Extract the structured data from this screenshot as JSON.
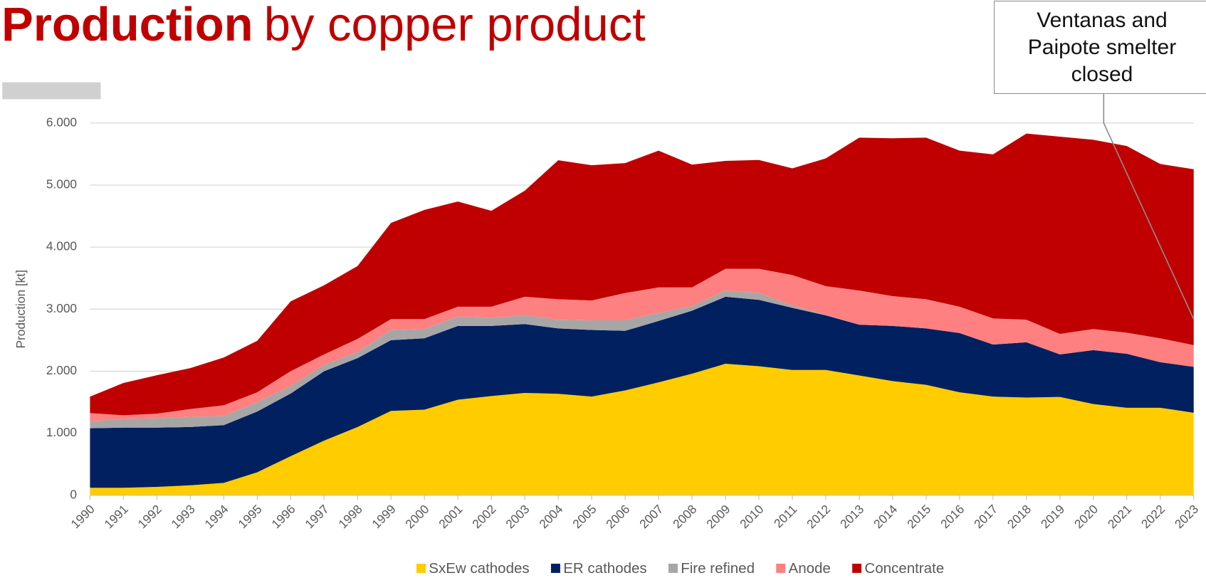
{
  "chart_data": {
    "type": "stacked_area",
    "title": {
      "bold": "Production",
      "regular": "by copper product"
    },
    "ylabel": "Production [kt]",
    "annotation": "Ventanas and Paipote smelter closed",
    "categories": [
      "1990",
      "1991",
      "1992",
      "1993",
      "1994",
      "1995",
      "1996",
      "1997",
      "1998",
      "1999",
      "2000",
      "2001",
      "2002",
      "2003",
      "2004",
      "2005",
      "2006",
      "2007",
      "2008",
      "2009",
      "2010",
      "2011",
      "2012",
      "2013",
      "2014",
      "2015",
      "2016",
      "2017",
      "2018",
      "2019",
      "2020",
      "2021",
      "2022",
      "2023"
    ],
    "series": [
      {
        "name": "SxEw cathodes",
        "color": "#ffcc00",
        "values": [
          120,
          120,
          135,
          160,
          200,
          370,
          630,
          880,
          1100,
          1360,
          1380,
          1540,
          1600,
          1650,
          1635,
          1590,
          1690,
          1820,
          1960,
          2120,
          2080,
          2020,
          2020,
          1930,
          1840,
          1780,
          1660,
          1590,
          1575,
          1585,
          1470,
          1410,
          1410,
          1330
        ]
      },
      {
        "name": "ER cathodes",
        "color": "#002060",
        "values": [
          960,
          970,
          955,
          940,
          930,
          980,
          1010,
          1120,
          1110,
          1140,
          1150,
          1190,
          1130,
          1110,
          1055,
          1075,
          960,
          990,
          1015,
          1080,
          1070,
          1000,
          880,
          820,
          890,
          910,
          955,
          840,
          890,
          685,
          870,
          870,
          735,
          740
        ]
      },
      {
        "name": "Fire refined",
        "color": "#a6a6a6",
        "values": [
          110,
          140,
          150,
          165,
          145,
          150,
          120,
          100,
          100,
          160,
          150,
          150,
          130,
          140,
          140,
          155,
          170,
          130,
          75,
          100,
          110,
          40,
          10,
          0,
          0,
          0,
          0,
          0,
          0,
          0,
          0,
          0,
          0,
          0
        ]
      },
      {
        "name": "Anode",
        "color": "#ff8080",
        "values": [
          135,
          60,
          75,
          125,
          175,
          160,
          240,
          170,
          210,
          180,
          160,
          160,
          180,
          300,
          330,
          320,
          440,
          410,
          300,
          350,
          390,
          490,
          460,
          550,
          480,
          470,
          425,
          420,
          365,
          330,
          340,
          340,
          385,
          350
        ]
      },
      {
        "name": "Concentrate",
        "color": "#c00000",
        "values": [
          265,
          520,
          620,
          660,
          770,
          830,
          1125,
          1115,
          1175,
          1550,
          1760,
          1695,
          1545,
          1710,
          2240,
          2180,
          2095,
          2205,
          1980,
          1740,
          1755,
          1720,
          2060,
          2465,
          2545,
          2605,
          2515,
          2645,
          3000,
          3180,
          3050,
          3010,
          2810,
          2835
        ]
      }
    ],
    "ylim": [
      0,
      6000
    ],
    "yticks": [
      0,
      {
        "value": 1000,
        "label": "1.000"
      },
      {
        "value": 2000,
        "label": "2.000"
      },
      {
        "value": 3000,
        "label": "3.000"
      },
      {
        "value": 4000,
        "label": "4.000"
      },
      {
        "value": 5000,
        "label": "5.000"
      },
      {
        "value": 6000,
        "label": "6.000"
      }
    ],
    "grid": true,
    "legend": "bottom"
  }
}
